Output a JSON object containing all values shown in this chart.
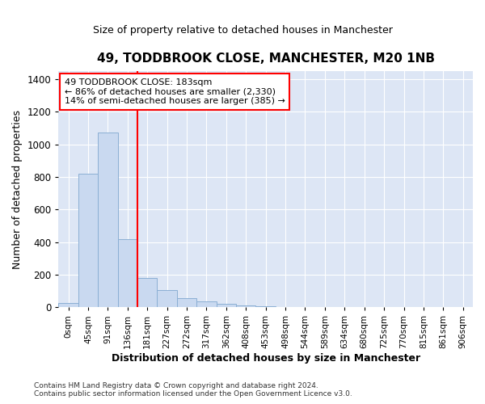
{
  "title": "49, TODDBROOK CLOSE, MANCHESTER, M20 1NB",
  "subtitle": "Size of property relative to detached houses in Manchester",
  "xlabel": "Distribution of detached houses by size in Manchester",
  "ylabel": "Number of detached properties",
  "bin_labels": [
    "0sqm",
    "45sqm",
    "91sqm",
    "136sqm",
    "181sqm",
    "227sqm",
    "272sqm",
    "317sqm",
    "362sqm",
    "408sqm",
    "453sqm",
    "498sqm",
    "544sqm",
    "589sqm",
    "634sqm",
    "680sqm",
    "725sqm",
    "770sqm",
    "815sqm",
    "861sqm",
    "906sqm"
  ],
  "bar_values": [
    25,
    820,
    1075,
    420,
    180,
    105,
    58,
    38,
    20,
    10,
    5,
    3,
    2,
    0,
    0,
    0,
    0,
    0,
    0,
    0,
    0
  ],
  "bar_color": "#c9d9f0",
  "bar_edge_color": "#8bafd4",
  "property_line_label": "49 TODDBROOK CLOSE: 183sqm",
  "annotation_line1": "← 86% of detached houses are smaller (2,330)",
  "annotation_line2": "14% of semi-detached houses are larger (385) →",
  "annotation_box_facecolor": "white",
  "annotation_box_edgecolor": "red",
  "vline_color": "red",
  "vline_x": 3.5,
  "ylim": [
    0,
    1450
  ],
  "yticks": [
    0,
    200,
    400,
    600,
    800,
    1000,
    1200,
    1400
  ],
  "fig_bg_color": "#ffffff",
  "plot_bg_color": "#dde6f5",
  "grid_color": "#ffffff",
  "footer_line1": "Contains HM Land Registry data © Crown copyright and database right 2024.",
  "footer_line2": "Contains public sector information licensed under the Open Government Licence v3.0."
}
